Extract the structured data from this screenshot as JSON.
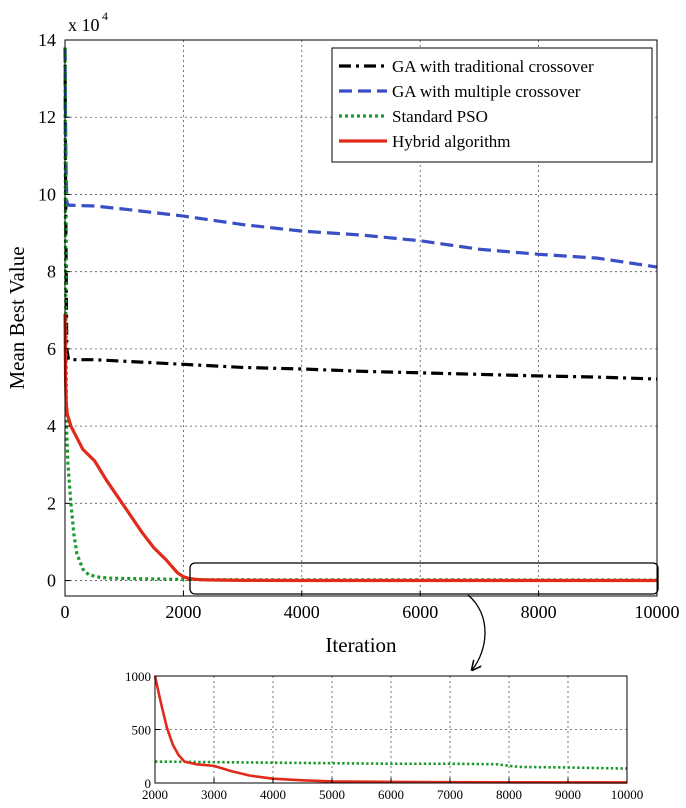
{
  "chart_data": [
    {
      "type": "line",
      "title": "",
      "xlabel": "Iteration",
      "ylabel": "Mean Best Value",
      "y_multiplier_label": "x 10",
      "y_multiplier_exponent": "4",
      "xlim": [
        0,
        10000
      ],
      "ylim": [
        -0.4,
        14
      ],
      "x_ticks": [
        0,
        2000,
        4000,
        6000,
        8000,
        10000
      ],
      "x_tick_labels": [
        "0",
        "2000",
        "4000",
        "6000",
        "8000",
        "10000"
      ],
      "y_ticks": [
        0,
        2,
        4,
        6,
        8,
        10,
        12,
        14
      ],
      "y_tick_labels": [
        "0",
        "2",
        "4",
        "6",
        "8",
        "10",
        "12",
        "14"
      ],
      "grid": true,
      "legend_position": "top-right",
      "series": [
        {
          "name": "GA with traditional crossover",
          "color": "#000000",
          "style": "dashdot",
          "x": [
            0,
            15,
            30,
            60,
            100,
            500,
            1000,
            2000,
            3000,
            4000,
            5000,
            6000,
            7000,
            8000,
            9000,
            10000
          ],
          "y": [
            13.8,
            9.0,
            6.0,
            5.72,
            5.72,
            5.72,
            5.68,
            5.6,
            5.52,
            5.48,
            5.42,
            5.38,
            5.34,
            5.3,
            5.27,
            5.22
          ]
        },
        {
          "name": "GA with multiple crossover",
          "color": "#3b4fc4",
          "style": "dashed",
          "x": [
            0,
            15,
            30,
            60,
            100,
            500,
            1000,
            2000,
            3000,
            4000,
            5000,
            6000,
            7000,
            8000,
            9000,
            10000
          ],
          "y": [
            13.8,
            11.0,
            9.8,
            9.72,
            9.72,
            9.7,
            9.62,
            9.44,
            9.22,
            9.05,
            8.95,
            8.8,
            8.58,
            8.45,
            8.35,
            8.12
          ]
        },
        {
          "name": "Standard PSO",
          "color": "#1a9a2a",
          "style": "dotted",
          "x": [
            0,
            10,
            25,
            50,
            100,
            150,
            200,
            300,
            400,
            600,
            800,
            1200,
            1600,
            2000,
            2500,
            3000,
            5000,
            7000,
            8000,
            10000
          ],
          "y": [
            13.8,
            8.0,
            4.0,
            3.0,
            2.0,
            1.2,
            0.7,
            0.3,
            0.15,
            0.08,
            0.06,
            0.05,
            0.04,
            0.03,
            0.02,
            0.02,
            0.018,
            0.018,
            0.015,
            0.013
          ]
        },
        {
          "name": "Hybrid algorithm",
          "color": "#e02a1a",
          "style": "solid",
          "x": [
            0,
            10,
            20,
            40,
            100,
            200,
            300,
            500,
            700,
            900,
            1100,
            1300,
            1500,
            1700,
            1900,
            2000,
            2100,
            2300,
            2500,
            3000,
            4000,
            5000,
            7000,
            10000
          ],
          "y": [
            6.9,
            5.2,
            4.6,
            4.3,
            4.0,
            3.7,
            3.4,
            3.1,
            2.6,
            2.15,
            1.7,
            1.25,
            0.85,
            0.55,
            0.2,
            0.1,
            0.05,
            0.02,
            0.015,
            0.005,
            0.002,
            0.001,
            0.001,
            0.001
          ]
        }
      ]
    },
    {
      "type": "line",
      "title": "",
      "xlabel": "",
      "ylabel": "",
      "xlim": [
        2000,
        10000
      ],
      "ylim": [
        0,
        1000
      ],
      "x_ticks": [
        2000,
        3000,
        4000,
        5000,
        6000,
        7000,
        8000,
        9000,
        10000
      ],
      "x_tick_labels": [
        "2000",
        "3000",
        "4000",
        "5000",
        "6000",
        "7000",
        "8000",
        "9000",
        "10000"
      ],
      "y_ticks": [
        0,
        500,
        1000
      ],
      "y_tick_labels": [
        "0",
        "500",
        "1000"
      ],
      "grid": true,
      "series": [
        {
          "color": "#1a9a2a",
          "style": "dotted",
          "x": [
            2000,
            3000,
            4000,
            5000,
            6000,
            7000,
            7800,
            8000,
            8200,
            9000,
            10000
          ],
          "y": [
            200,
            195,
            190,
            185,
            180,
            180,
            175,
            160,
            150,
            145,
            135
          ]
        },
        {
          "color": "#e02a1a",
          "style": "solid",
          "x": [
            2000,
            2100,
            2200,
            2300,
            2400,
            2500,
            2700,
            3000,
            3300,
            3600,
            4000,
            4500,
            5000,
            6000,
            7000,
            8000,
            10000
          ],
          "y": [
            1000,
            750,
            520,
            360,
            260,
            200,
            175,
            160,
            110,
            70,
            40,
            25,
            15,
            10,
            8,
            6,
            5
          ]
        }
      ]
    }
  ]
}
